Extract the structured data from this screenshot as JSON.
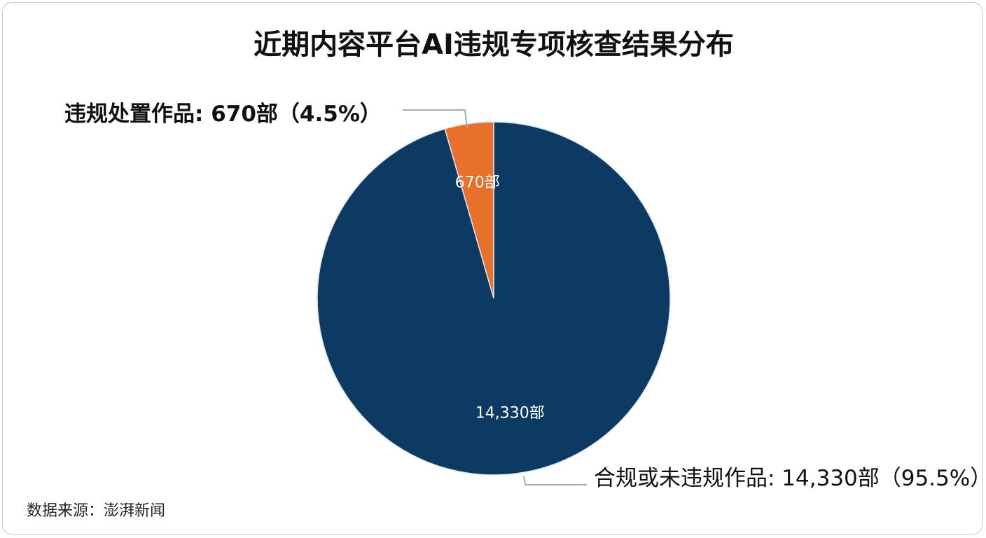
{
  "chart_data": {
    "type": "pie",
    "title": "近期内容平台AI违规专项核查结果分布",
    "values": [
      670,
      14330
    ],
    "value_labels": [
      "670部",
      "14,330部"
    ],
    "labels": [
      "违规处置作品: 670部（4.5%）",
      "合规或未违规作品: 14,330部（95.5%）"
    ],
    "colors": [
      "#e8702a",
      "#0d3a63"
    ],
    "source": "数据来源：澎湃新闻"
  }
}
